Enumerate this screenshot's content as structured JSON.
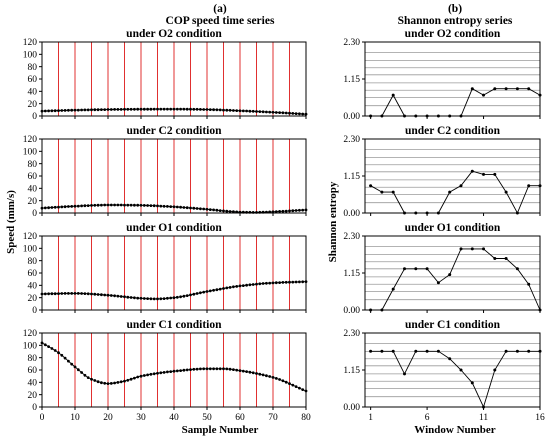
{
  "figure": {
    "left_label": "(a)",
    "right_label": "(b)",
    "left_title": "COP speed time series",
    "right_title": "Shannon entropy series",
    "left_ylabel": "Speed (mm/s)",
    "right_ylabel": "Shannon entropy",
    "left_xlabel": "Sample Number",
    "right_xlabel": "Window Number"
  },
  "colors": {
    "window_line": "#e03030",
    "grid_line": "#9a9a9a",
    "data": "#000000"
  },
  "chart_data": [
    {
      "type": "line",
      "panel": "speed",
      "title": "under O2 condition",
      "ylim": [
        0,
        120
      ],
      "yticks": [
        0,
        20,
        40,
        60,
        80,
        100,
        120
      ],
      "xlim": [
        0,
        80
      ],
      "xticks": [
        0,
        10,
        20,
        30,
        40,
        50,
        60,
        70,
        80
      ],
      "window_lines_x": [
        5,
        10,
        15,
        20,
        25,
        30,
        35,
        40,
        45,
        50,
        55,
        60,
        65,
        70,
        75
      ],
      "x": [
        0,
        10,
        20,
        30,
        40,
        50,
        60,
        70,
        80
      ],
      "values": [
        8,
        9.5,
        10.5,
        11,
        11.2,
        10.5,
        8.5,
        6,
        3
      ]
    },
    {
      "type": "line",
      "panel": "speed",
      "title": "under C2 condition",
      "ylim": [
        0,
        120
      ],
      "yticks": [
        0,
        20,
        40,
        60,
        80,
        100,
        120
      ],
      "xlim": [
        0,
        80
      ],
      "xticks": [
        0,
        10,
        20,
        30,
        40,
        50,
        60,
        70,
        80
      ],
      "window_lines_x": [
        5,
        10,
        15,
        20,
        25,
        30,
        35,
        40,
        45,
        50,
        55,
        60,
        65,
        70,
        75
      ],
      "x": [
        0,
        10,
        20,
        30,
        40,
        50,
        60,
        65,
        70,
        80
      ],
      "values": [
        8,
        11,
        13,
        12.5,
        10,
        6,
        1.5,
        1,
        2,
        5
      ]
    },
    {
      "type": "line",
      "panel": "speed",
      "title": "under O1 condition",
      "ylim": [
        0,
        120
      ],
      "yticks": [
        0,
        20,
        40,
        60,
        80,
        100,
        120
      ],
      "xlim": [
        0,
        80
      ],
      "xticks": [
        0,
        10,
        20,
        30,
        40,
        50,
        60,
        70,
        80
      ],
      "window_lines_x": [
        5,
        10,
        15,
        20,
        25,
        30,
        35,
        40,
        45,
        50,
        55,
        60,
        65,
        70,
        75
      ],
      "x": [
        0,
        10,
        20,
        30,
        35,
        40,
        50,
        60,
        70,
        80
      ],
      "values": [
        26,
        27,
        24,
        19,
        18,
        20,
        30,
        39,
        44,
        46
      ]
    },
    {
      "type": "line",
      "panel": "speed",
      "title": "under C1 condition",
      "ylim": [
        0,
        120
      ],
      "yticks": [
        0,
        20,
        40,
        60,
        80,
        100,
        120
      ],
      "xlim": [
        0,
        80
      ],
      "xticks": [
        0,
        10,
        20,
        30,
        40,
        50,
        60,
        70,
        80
      ],
      "window_lines_x": [
        5,
        10,
        15,
        20,
        25,
        30,
        35,
        40,
        45,
        50,
        55,
        60,
        65,
        70,
        75
      ],
      "x": [
        0,
        5,
        10,
        15,
        20,
        25,
        30,
        40,
        50,
        55,
        60,
        70,
        80
      ],
      "values": [
        104,
        88,
        65,
        45,
        38,
        42,
        50,
        58,
        62,
        62,
        59,
        48,
        26
      ]
    },
    {
      "type": "line",
      "panel": "entropy",
      "title": "under O2 condition",
      "ylim": [
        0,
        2.3
      ],
      "yticks": [
        0,
        1.15,
        2.3
      ],
      "ytick_labels": [
        "0.00",
        "1.15",
        "2.30"
      ],
      "xlim": [
        0.5,
        16
      ],
      "xticks": [
        1,
        6,
        11,
        16
      ],
      "grid_y": [
        0.32,
        0.58,
        0.8,
        1.03,
        1.28,
        1.5,
        1.73,
        1.97
      ],
      "x": [
        1,
        2,
        3,
        4,
        5,
        6,
        7,
        8,
        9,
        10,
        11,
        12,
        13,
        14,
        15,
        16
      ],
      "values": [
        0,
        0,
        0.65,
        0,
        0,
        0,
        0,
        0,
        0,
        0.85,
        0.65,
        0.85,
        0.85,
        0.85,
        0.85,
        0.65
      ]
    },
    {
      "type": "line",
      "panel": "entropy",
      "title": "under C2 condition",
      "ylim": [
        0,
        2.3
      ],
      "yticks": [
        0,
        1.15,
        2.3
      ],
      "ytick_labels": [
        "0.00",
        "1.15",
        "2.30"
      ],
      "xlim": [
        0.5,
        16
      ],
      "xticks": [
        1,
        6,
        11,
        16
      ],
      "grid_y": [
        0.32,
        0.58,
        0.8,
        1.03,
        1.28,
        1.5,
        1.73,
        1.97
      ],
      "x": [
        1,
        2,
        3,
        4,
        5,
        6,
        7,
        8,
        9,
        10,
        11,
        12,
        13,
        14,
        15,
        16
      ],
      "values": [
        0.85,
        0.65,
        0.65,
        0,
        0,
        0,
        0,
        0.65,
        0.85,
        1.3,
        1.2,
        1.2,
        0.65,
        0,
        0.85,
        0.85
      ]
    },
    {
      "type": "line",
      "panel": "entropy",
      "title": "under O1 condition",
      "ylim": [
        0,
        2.3
      ],
      "yticks": [
        0,
        1.15,
        2.3
      ],
      "ytick_labels": [
        "0.00",
        "1.15",
        "2.30"
      ],
      "xlim": [
        0.5,
        16
      ],
      "xticks": [
        1,
        6,
        11,
        16
      ],
      "grid_y": [
        0.32,
        0.58,
        0.8,
        1.03,
        1.28,
        1.5,
        1.73,
        1.97
      ],
      "x": [
        1,
        2,
        3,
        4,
        5,
        6,
        7,
        8,
        9,
        10,
        11,
        12,
        13,
        14,
        15,
        16
      ],
      "values": [
        0,
        0,
        0.65,
        1.28,
        1.28,
        1.28,
        0.85,
        1.1,
        1.9,
        1.9,
        1.9,
        1.6,
        1.6,
        1.28,
        0.8,
        0
      ]
    },
    {
      "type": "line",
      "panel": "entropy",
      "title": "under C1 condition",
      "ylim": [
        0,
        2.3
      ],
      "yticks": [
        0,
        1.15,
        2.3
      ],
      "ytick_labels": [
        "0.00",
        "1.15",
        "2.30"
      ],
      "xlim": [
        0.5,
        16
      ],
      "xticks": [
        1,
        6,
        11,
        16
      ],
      "grid_y": [
        0.32,
        0.58,
        0.8,
        1.03,
        1.28,
        1.5,
        1.73,
        1.97
      ],
      "x": [
        1,
        2,
        3,
        4,
        5,
        6,
        7,
        8,
        9,
        10,
        11,
        12,
        13,
        14,
        15,
        16
      ],
      "values": [
        1.73,
        1.73,
        1.73,
        1.03,
        1.73,
        1.73,
        1.73,
        1.5,
        1.15,
        0.75,
        0,
        1.15,
        1.73,
        1.73,
        1.73,
        1.73
      ]
    }
  ]
}
